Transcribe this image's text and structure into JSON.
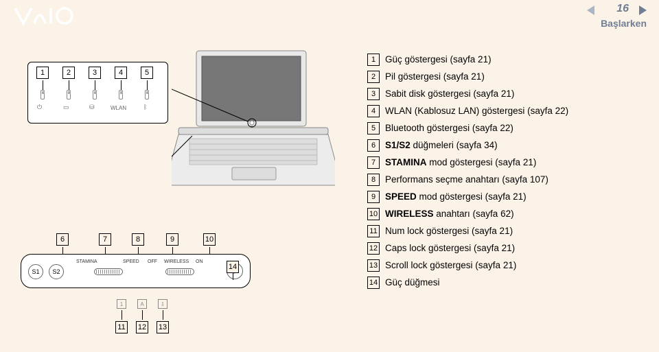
{
  "header": {
    "logo_text": "VAIO",
    "page_number": "16",
    "section": "Başlarken"
  },
  "diagram": {
    "top_numbers": [
      "1",
      "2",
      "3",
      "4",
      "5"
    ],
    "top_icons": {
      "wlan": "WLAN"
    },
    "bottom_numbers": [
      "6",
      "7",
      "8",
      "9",
      "10"
    ],
    "panel": {
      "s1": "S1",
      "s2": "S2",
      "stamina": "STAMINA",
      "speed": "SPEED",
      "off": "OFF",
      "wireless": "WIRELESS",
      "on": "ON"
    },
    "lock_numbers": [
      "11",
      "12",
      "13",
      "14"
    ],
    "lock_chars": [
      "1",
      "A",
      "⇩"
    ]
  },
  "items": [
    {
      "n": "1",
      "pre": "",
      "bold": "",
      "post": "Güç göstergesi (sayfa 21)"
    },
    {
      "n": "2",
      "pre": "",
      "bold": "",
      "post": "Pil göstergesi (sayfa 21)"
    },
    {
      "n": "3",
      "pre": "",
      "bold": "",
      "post": "Sabit disk göstergesi (sayfa 21)"
    },
    {
      "n": "4",
      "pre": "",
      "bold": "",
      "post": "WLAN (Kablosuz LAN) göstergesi (sayfa 22)"
    },
    {
      "n": "5",
      "pre": "",
      "bold": "",
      "post": "Bluetooth göstergesi (sayfa 22)"
    },
    {
      "n": "6",
      "pre": "",
      "bold": "S1/S2",
      "post": " düğmeleri (sayfa 34)"
    },
    {
      "n": "7",
      "pre": "",
      "bold": "STAMINA",
      "post": " mod göstergesi (sayfa 21)"
    },
    {
      "n": "8",
      "pre": "",
      "bold": "",
      "post": "Performans seçme anahtarı (sayfa 107)"
    },
    {
      "n": "9",
      "pre": "",
      "bold": "SPEED",
      "post": " mod göstergesi (sayfa 21)"
    },
    {
      "n": "10",
      "pre": "",
      "bold": "WIRELESS",
      "post": " anahtarı (sayfa 62)"
    },
    {
      "n": "11",
      "pre": "",
      "bold": "",
      "post": "Num lock göstergesi (sayfa 21)"
    },
    {
      "n": "12",
      "pre": "",
      "bold": "",
      "post": "Caps lock göstergesi (sayfa 21)"
    },
    {
      "n": "13",
      "pre": "",
      "bold": "",
      "post": "Scroll lock göstergesi (sayfa 21)"
    },
    {
      "n": "14",
      "pre": "",
      "bold": "",
      "post": "Güç düğmesi"
    }
  ],
  "colors": {
    "background": "#fbf3e8",
    "header_text": "#717d93",
    "nav_left": "#a9b7c5",
    "nav_right": "#717d93"
  }
}
